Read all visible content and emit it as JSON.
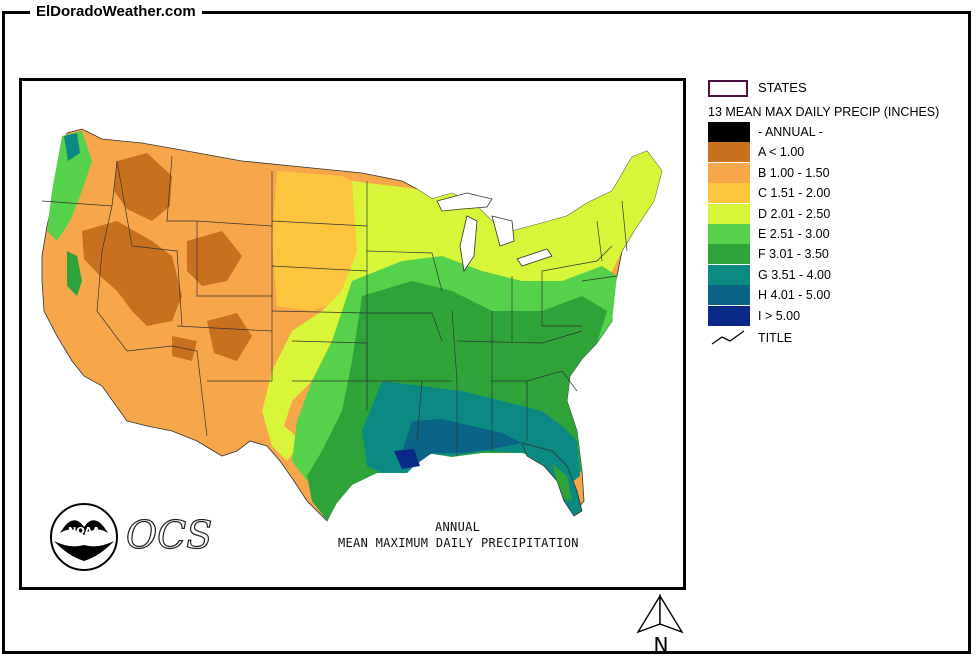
{
  "site": {
    "title": "ElDoradoWeather.com"
  },
  "map": {
    "caption_line1": "ANNUAL",
    "caption_line2": "MEAN MAXIMUM DAILY PRECIPITATION",
    "logo_text": "NOAA",
    "ocs_text": "OCS",
    "north_label": "N"
  },
  "legend": {
    "states_label": "STATES",
    "title": "13 MEAN MAX DAILY PRECIP (INCHES)",
    "items": [
      {
        "label": "- ANNUAL -",
        "color": "#000000"
      },
      {
        "label": "A < 1.00",
        "color": "#c8701e"
      },
      {
        "label": "B 1.00 - 1.50",
        "color": "#f7a74a"
      },
      {
        "label": "C 1.51 - 2.00",
        "color": "#fbc63e"
      },
      {
        "label": "D 2.01 - 2.50",
        "color": "#d8f53a"
      },
      {
        "label": "E 2.51 - 3.00",
        "color": "#55d14b"
      },
      {
        "label": "F 3.01 - 3.50",
        "color": "#2da33a"
      },
      {
        "label": "G 3.51 - 4.00",
        "color": "#0a8a82"
      },
      {
        "label": "H 4.01 - 5.00",
        "color": "#0a6486"
      },
      {
        "label": "I > 5.00",
        "color": "#082a86"
      }
    ],
    "line_label": "TITLE"
  }
}
